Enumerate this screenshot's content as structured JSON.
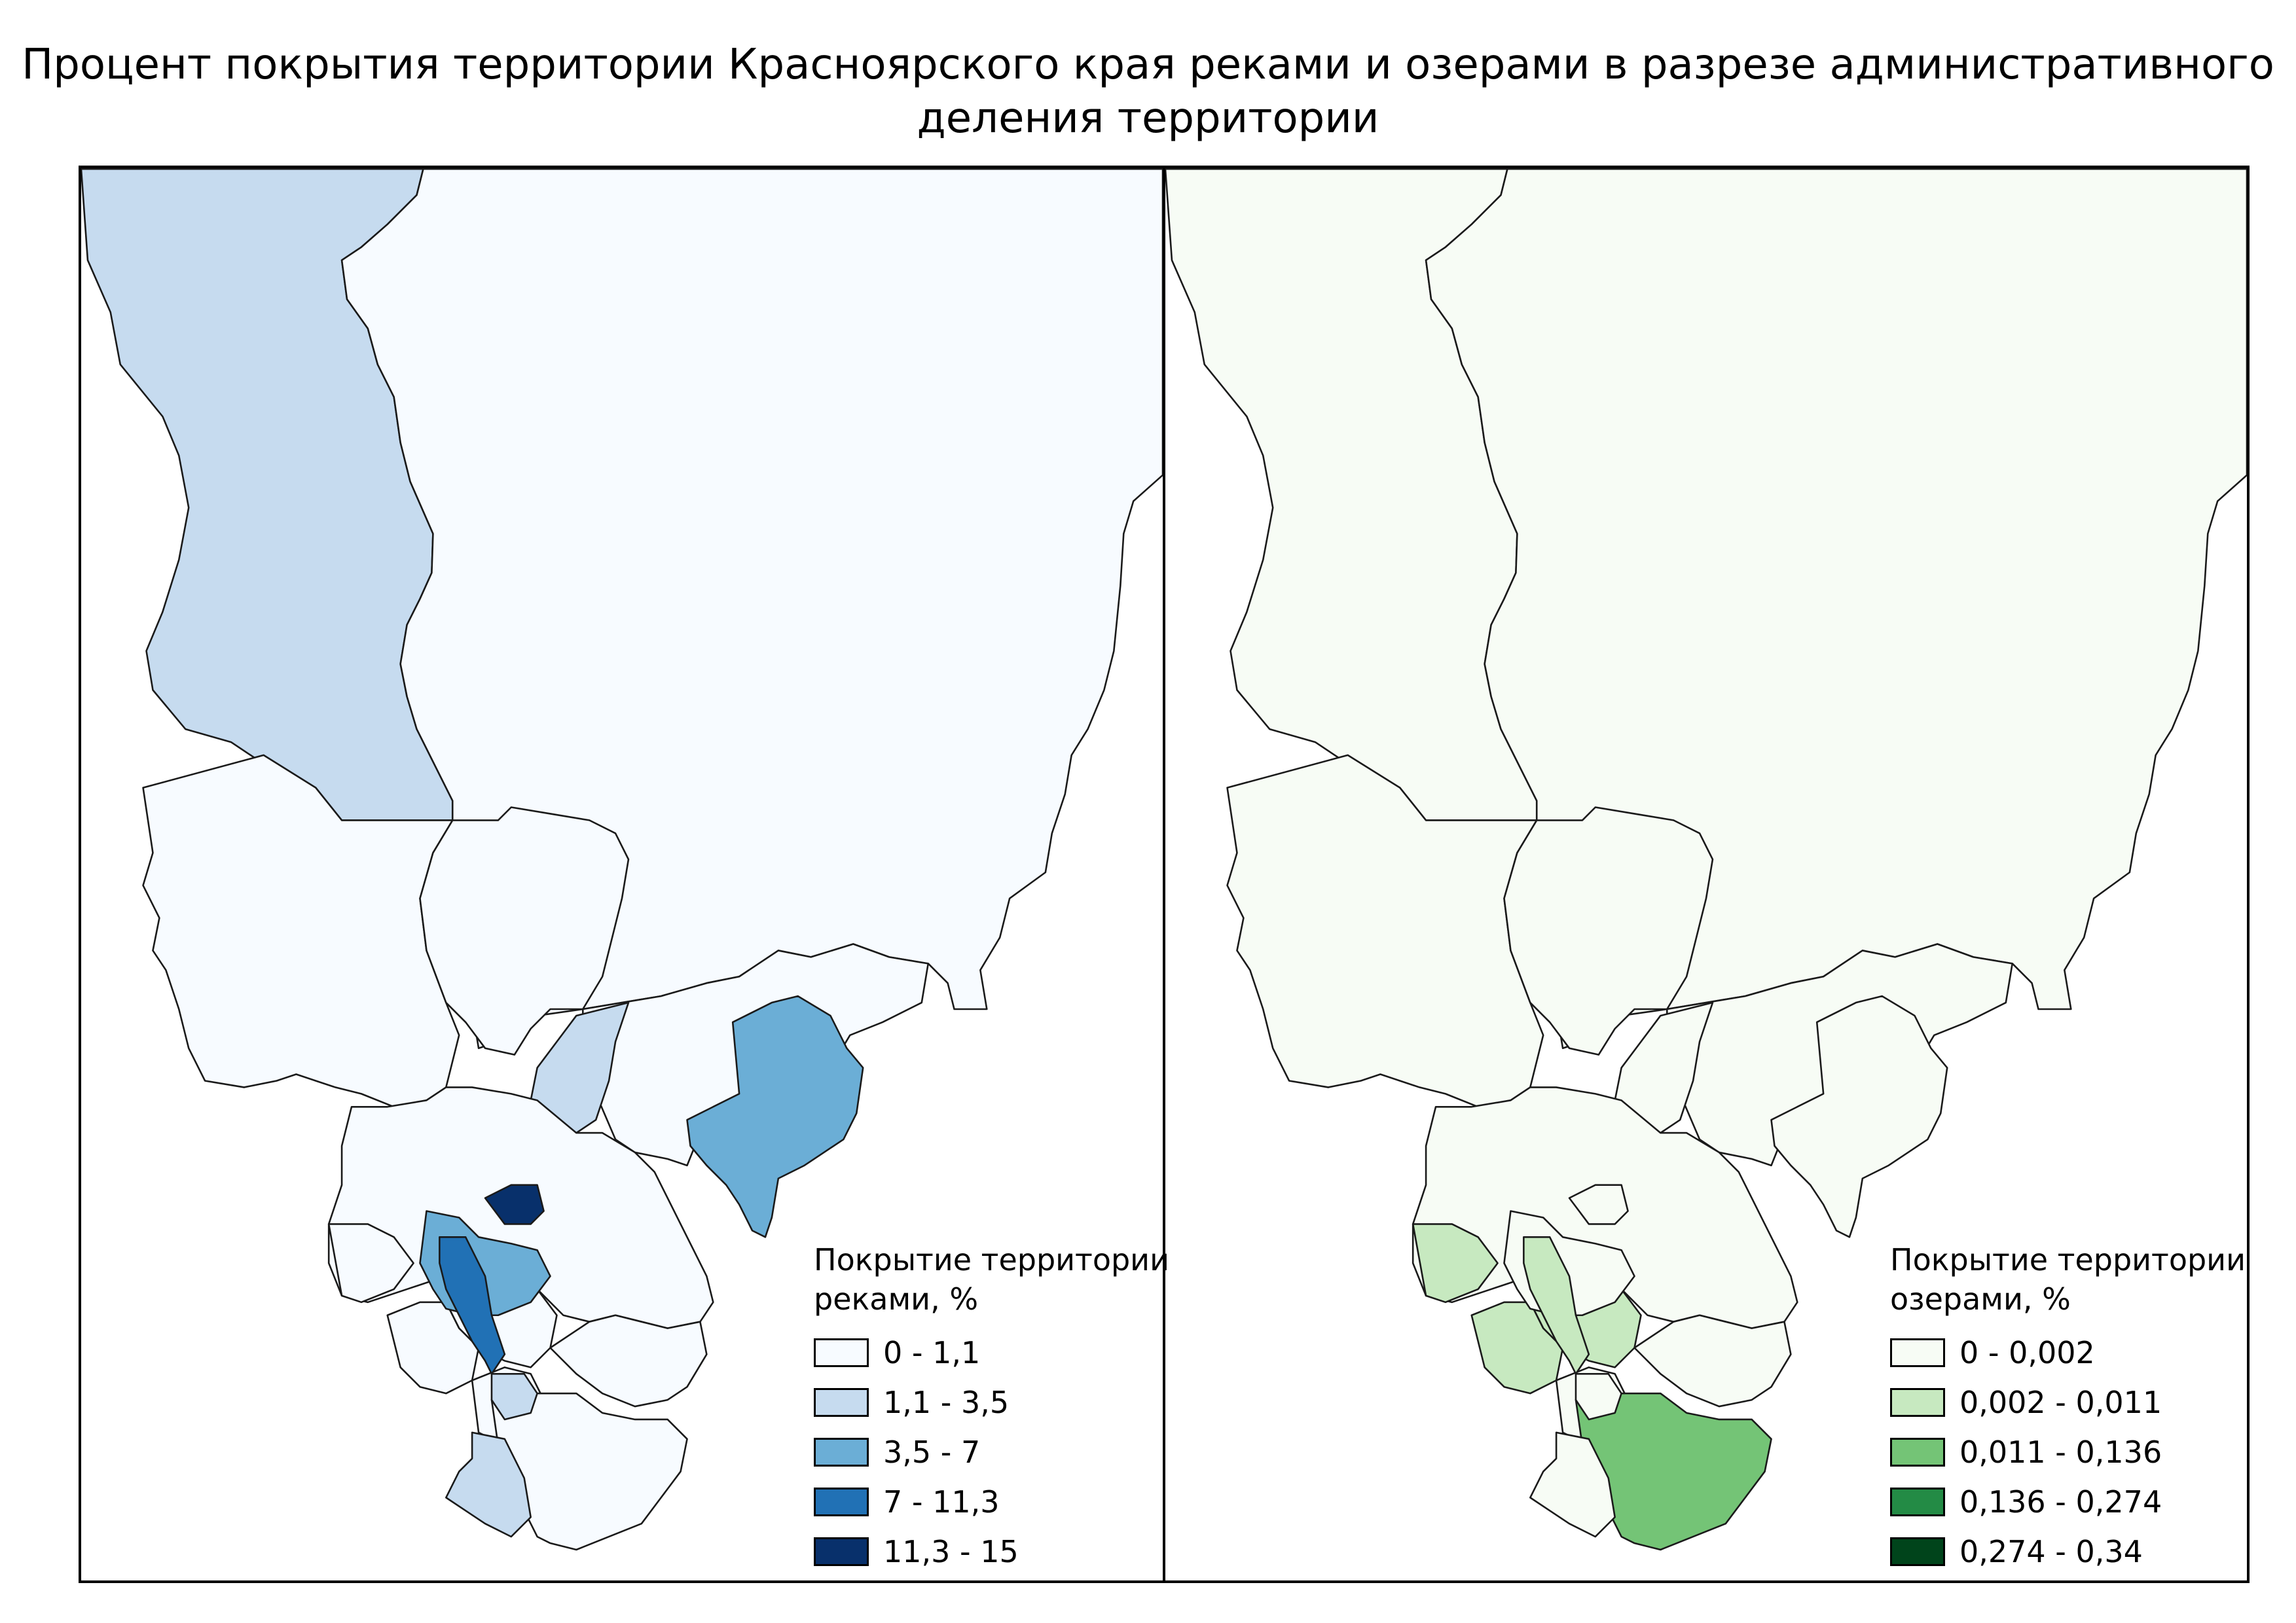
{
  "title": {
    "line1": "Процент покрытия территории Красноярского края реками и озерами в разрезе административного",
    "line2": "деления территории"
  },
  "maps": [
    {
      "id": "rivers",
      "legend": {
        "title_line1": "Покрытие территории",
        "title_line2": "реками, %",
        "classes": [
          {
            "label": "0 - 1,1",
            "color": "#f7fbff"
          },
          {
            "label": "1,1 - 3,5",
            "color": "#c6dbef"
          },
          {
            "label": "3,5 - 7",
            "color": "#6baed6"
          },
          {
            "label": "7 - 11,3",
            "color": "#2171b5"
          },
          {
            "label": "11,3 - 15",
            "color": "#08306b"
          }
        ]
      },
      "region_classes": {
        "north-west": 1,
        "north-east": 0,
        "west-central": 0,
        "center-north": 0,
        "center-east": 0,
        "center-strip": 1,
        "east-blob": 2,
        "south-belt": 0,
        "south-a": 0,
        "south-b": 0,
        "south-c": 0,
        "south-d": 0,
        "south-e": 0,
        "sw-blob": 2,
        "sw-strip": 3,
        "sw-dark": 4,
        "south-tail": 0,
        "sw-tail": 1,
        "sw-small": 1
      }
    },
    {
      "id": "lakes",
      "legend": {
        "title_line1": "Покрытие территории",
        "title_line2": "озерами, %",
        "classes": [
          {
            "label": "0 - 0,002",
            "color": "#f7fcf5"
          },
          {
            "label": "0,002 - 0,011",
            "color": "#c7e9c0"
          },
          {
            "label": "0,011 - 0,136",
            "color": "#74c476"
          },
          {
            "label": "0,136 - 0,274",
            "color": "#238b45"
          },
          {
            "label": "0,274 - 0,34",
            "color": "#00441b"
          }
        ]
      },
      "region_classes": {
        "north-west": 0,
        "north-east": 0,
        "west-central": 0,
        "center-north": 0,
        "center-east": 0,
        "center-strip": 0,
        "east-blob": 0,
        "south-belt": 0,
        "south-a": 1,
        "south-b": 1,
        "south-c": 0,
        "south-d": 1,
        "south-e": 0,
        "sw-blob": 0,
        "sw-strip": 1,
        "sw-dark": 0,
        "south-tail": 2,
        "sw-tail": 0,
        "sw-small": 0
      }
    }
  ]
}
